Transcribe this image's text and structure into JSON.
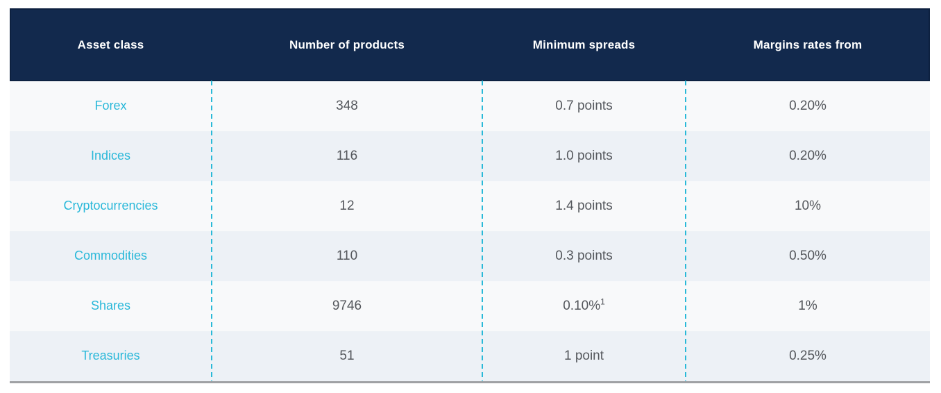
{
  "table": {
    "columns": [
      {
        "label": "Asset class"
      },
      {
        "label": "Number of products"
      },
      {
        "label": "Minimum spreads"
      },
      {
        "label": "Margins rates from"
      }
    ],
    "rows": [
      {
        "asset_class": "Forex",
        "number_of_products": "348",
        "minimum_spreads": "0.7 points",
        "minimum_spreads_sup": "",
        "margin_rates_from": "0.20%"
      },
      {
        "asset_class": "Indices",
        "number_of_products": "116",
        "minimum_spreads": "1.0 points",
        "minimum_spreads_sup": "",
        "margin_rates_from": "0.20%"
      },
      {
        "asset_class": "Cryptocurrencies",
        "number_of_products": "12",
        "minimum_spreads": "1.4 points",
        "minimum_spreads_sup": "",
        "margin_rates_from": "10%"
      },
      {
        "asset_class": "Commodities",
        "number_of_products": "110",
        "minimum_spreads": "0.3 points",
        "minimum_spreads_sup": "",
        "margin_rates_from": "0.50%"
      },
      {
        "asset_class": "Shares",
        "number_of_products": "9746",
        "minimum_spreads": "0.10%",
        "minimum_spreads_sup": "1",
        "margin_rates_from": "1%"
      },
      {
        "asset_class": "Treasuries",
        "number_of_products": "51",
        "minimum_spreads": "1 point",
        "minimum_spreads_sup": "",
        "margin_rates_from": "0.25%"
      }
    ]
  },
  "colors": {
    "header_bg": "#12294d",
    "header_text": "#ffffff",
    "accent_cyan": "#29b8d9",
    "divider_cyan": "#29b9d8",
    "row_light": "#f8f9fa",
    "row_shaded": "#edf1f6",
    "cell_text": "#54575c",
    "bottom_border": "#9fa1a4"
  }
}
